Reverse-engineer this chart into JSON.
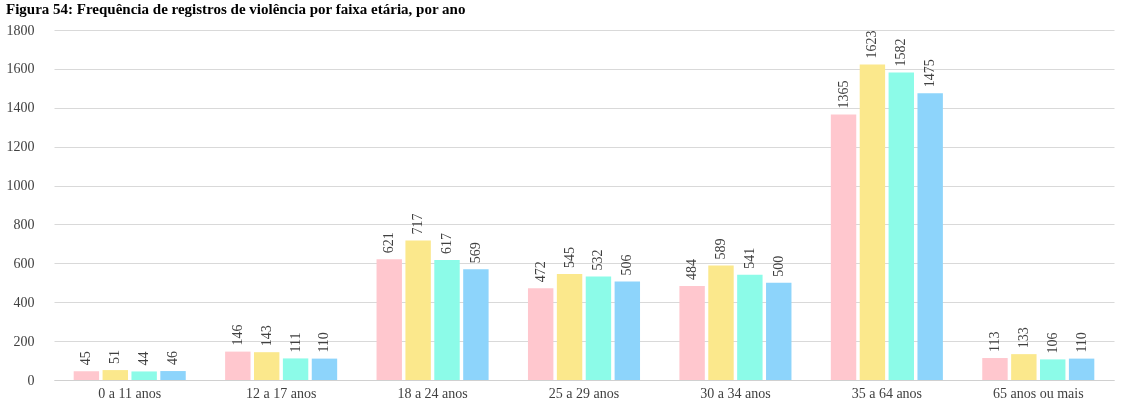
{
  "chart_data": {
    "type": "bar",
    "title": "Figura 54: Frequência de registros de violência por faixa etária, por ano",
    "categories": [
      "0 a 11 anos",
      "12 a 17 anos",
      "18 a 24 anos",
      "25 a 29 anos",
      "30 a 34 anos",
      "35 a 64 anos",
      "65 anos ou mais"
    ],
    "series": [
      {
        "color": "#ffc7ce",
        "values": [
          45,
          146,
          621,
          472,
          484,
          1365,
          113
        ]
      },
      {
        "color": "#fbe88c",
        "values": [
          51,
          143,
          717,
          545,
          589,
          1623,
          133
        ]
      },
      {
        "color": "#8cfbe8",
        "values": [
          44,
          111,
          617,
          532,
          541,
          1582,
          106
        ]
      },
      {
        "color": "#8dd4fb",
        "values": [
          46,
          110,
          569,
          506,
          500,
          1475,
          110
        ]
      }
    ],
    "ylim": [
      0,
      1800
    ],
    "yticks": [
      0,
      200,
      400,
      600,
      800,
      1000,
      1200,
      1400,
      1600,
      1800
    ],
    "grid": "y",
    "data_labels": true,
    "legend": false
  }
}
